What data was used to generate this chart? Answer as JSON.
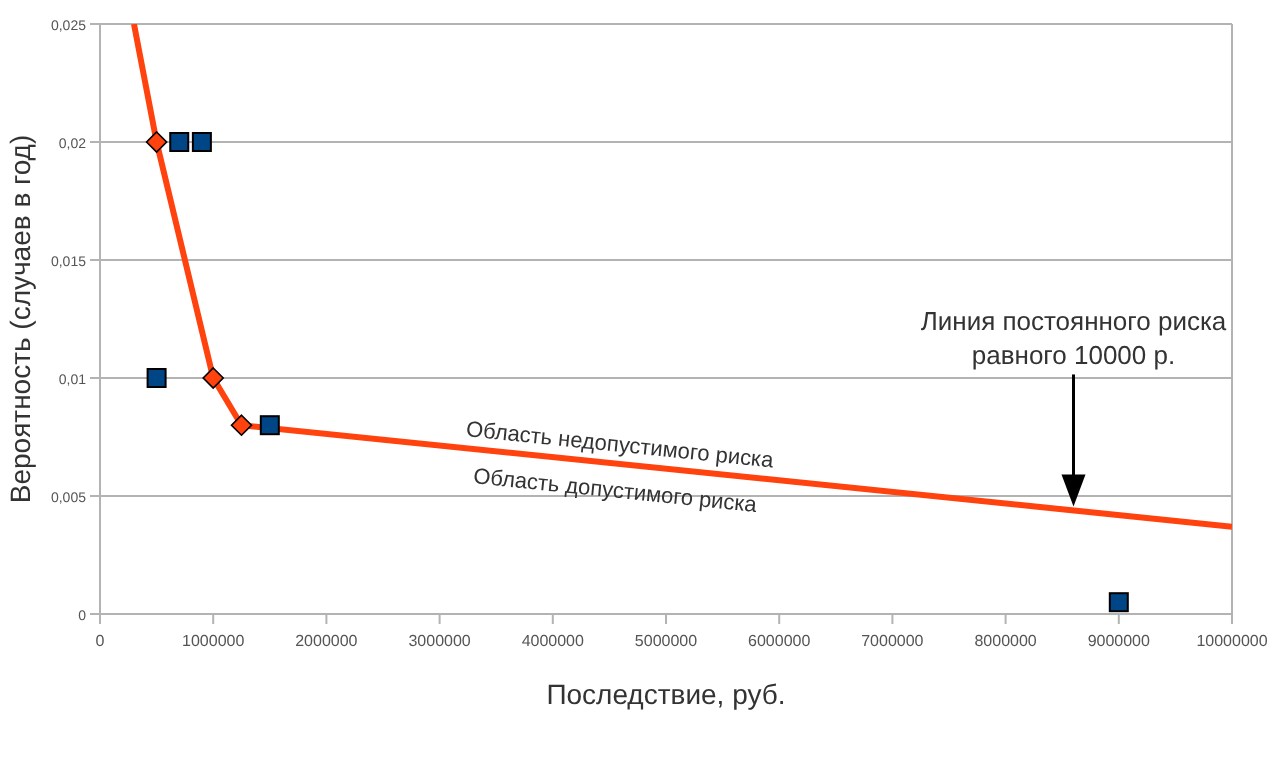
{
  "chart_data": {
    "type": "line",
    "xlabel": "Последствие, руб.",
    "ylabel": "Вероятность (случаев в год)",
    "xlim": [
      0,
      10000000
    ],
    "xticks": [
      0,
      1000000,
      2000000,
      3000000,
      4000000,
      5000000,
      6000000,
      7000000,
      8000000,
      9000000,
      10000000
    ],
    "ylim": [
      0,
      0.025
    ],
    "yticks": [
      {
        "value": 0,
        "label": "0"
      },
      {
        "value": 0.005,
        "label": "0,005"
      },
      {
        "value": 0.01,
        "label": "0,01"
      },
      {
        "value": 0.015,
        "label": "0,015"
      },
      {
        "value": 0.02,
        "label": "0,02"
      },
      {
        "value": 0.025,
        "label": "0,025"
      }
    ],
    "grid": "y",
    "series": [
      {
        "color": "#ff420e",
        "marker": "none",
        "x": [
          300000,
          500000,
          1000000,
          1250000,
          10000000
        ],
        "values": [
          0.025,
          0.02,
          0.01,
          0.008,
          0.0037
        ]
      },
      {
        "type": "scatter",
        "color": "#ff420e",
        "marker": "diamond",
        "x": [
          500000,
          1000000,
          1250000
        ],
        "values": [
          0.02,
          0.01,
          0.008
        ]
      },
      {
        "type": "scatter",
        "color": "#004586",
        "marker": "square",
        "x": [
          500000,
          700000,
          900000,
          1500000,
          9000000
        ],
        "values": [
          0.01,
          0.02,
          0.02,
          0.008,
          0.0005
        ]
      }
    ],
    "annotations": [
      "Область недопустимого риска",
      "Область допустимого риска",
      "Линия постоянного риска\nравного 10000 р."
    ]
  }
}
